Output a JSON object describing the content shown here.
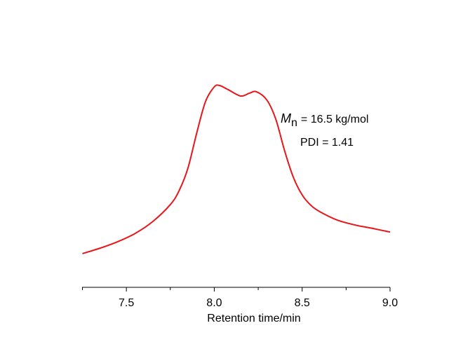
{
  "chart_data": {
    "type": "line",
    "x_label": "Retention time/min",
    "x": [
      7.25,
      7.35,
      7.45,
      7.55,
      7.65,
      7.75,
      7.8,
      7.85,
      7.9,
      7.95,
      8.0,
      8.03,
      8.08,
      8.15,
      8.2,
      8.24,
      8.3,
      8.35,
      8.4,
      8.45,
      8.5,
      8.55,
      8.6,
      8.7,
      8.8,
      8.9,
      9.0
    ],
    "series": [
      {
        "color": "#e8161b",
        "values": [
          0.167,
          0.194,
          0.226,
          0.267,
          0.326,
          0.41,
          0.479,
          0.59,
          0.764,
          0.92,
          0.993,
          1.0,
          0.979,
          0.948,
          0.962,
          0.969,
          0.927,
          0.833,
          0.677,
          0.545,
          0.458,
          0.406,
          0.375,
          0.333,
          0.309,
          0.292,
          0.274
        ]
      }
    ],
    "xlim": [
      7.25,
      9.0
    ],
    "xticks": [
      7.5,
      {
        "value": 8.0,
        "label": "8.0"
      },
      8.5,
      {
        "value": 9.0,
        "label": "9.0"
      }
    ],
    "xminor_ticks": [
      7.25,
      7.75,
      8.25,
      8.75
    ],
    "ylim": [
      0,
      1
    ],
    "annotations": [
      {
        "symbol": "M",
        "subscript": "n",
        "text": "= 16.5 kg/mol"
      },
      {
        "text": "PDI = 1.41"
      }
    ]
  }
}
